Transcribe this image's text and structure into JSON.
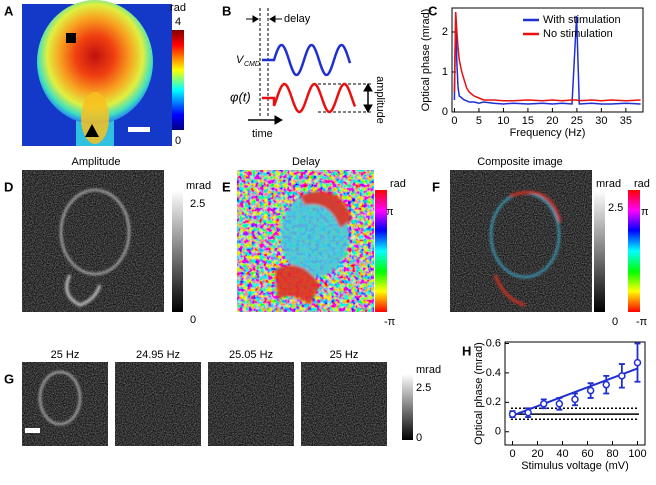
{
  "panels": {
    "A": {
      "letter": "A",
      "unit": "rad",
      "max": "4",
      "min": "0"
    },
    "B": {
      "letter": "B",
      "delay": "delay",
      "amplitude": "amplitude",
      "time": "time",
      "vcmd": "V",
      "vcmd_sub": "CMD",
      "phi": "φ(t)"
    },
    "C": {
      "letter": "C"
    },
    "D": {
      "letter": "D",
      "title": "Amplitude",
      "unit": "mrad",
      "max": "2.5",
      "min": "0"
    },
    "E": {
      "letter": "E",
      "title": "Delay",
      "unit": "rad",
      "max": "π",
      "min": "-π"
    },
    "F": {
      "letter": "F",
      "title": "Composite image",
      "unit_gray": "mrad",
      "unit_color": "rad",
      "gray_max": "2.5",
      "gray_min": "0",
      "color_max": "π",
      "color_min": "-π"
    },
    "G": {
      "letter": "G",
      "titles": [
        "25 Hz",
        "24.95 Hz",
        "25.05 Hz",
        "25 Hz"
      ],
      "unit": "mrad",
      "max": "2.5",
      "min": "0"
    },
    "H": {
      "letter": "H"
    }
  },
  "chart_data": [
    {
      "type": "line",
      "x_label": "Frequency (Hz)",
      "y_label": "Optical phase (mrad)",
      "x": [
        0,
        0.25,
        0.5,
        0.75,
        1,
        1.5,
        2,
        2.5,
        3,
        4,
        5,
        6,
        8,
        10,
        12,
        15,
        18,
        20,
        22,
        24,
        24.95,
        25.5,
        28,
        30,
        32,
        35,
        38
      ],
      "series": [
        {
          "name": "With stimulation",
          "color": "#1f2fd0",
          "values": [
            0.3,
            2.5,
            1.2,
            0.6,
            0.4,
            0.35,
            0.3,
            0.28,
            0.25,
            0.25,
            0.22,
            0.25,
            0.22,
            0.2,
            0.22,
            0.2,
            0.22,
            0.2,
            0.22,
            0.2,
            2.4,
            0.2,
            0.22,
            0.2,
            0.2,
            0.22,
            0.2
          ]
        },
        {
          "name": "No stimulation",
          "color": "#e81010",
          "values": [
            0.5,
            2.5,
            2.0,
            1.6,
            1.3,
            1.0,
            0.8,
            0.6,
            0.5,
            0.4,
            0.35,
            0.3,
            0.3,
            0.28,
            0.28,
            0.3,
            0.28,
            0.3,
            0.28,
            0.3,
            0.3,
            0.28,
            0.3,
            0.28,
            0.3,
            0.28,
            0.3
          ]
        }
      ],
      "xlim": [
        -0.5,
        38.5
      ],
      "ylim": [
        0,
        2.6
      ],
      "xticks": [
        0,
        5,
        10,
        15,
        20,
        25,
        30,
        35
      ],
      "yticks": [
        0,
        1,
        2
      ],
      "legend": "upper right"
    },
    {
      "type": "scatter",
      "x_label": "Stimulus voltage (mV)",
      "y_label": "Optical phase (mrad)",
      "color": "#1f2fd0",
      "x": [
        0,
        12.5,
        25,
        37.5,
        50,
        62.5,
        75,
        87.5,
        100
      ],
      "values": [
        0.12,
        0.13,
        0.19,
        0.19,
        0.22,
        0.28,
        0.32,
        0.38,
        0.47
      ],
      "errors": [
        0.02,
        0.03,
        0.03,
        0.04,
        0.04,
        0.05,
        0.06,
        0.08,
        0.13
      ],
      "fit": {
        "x": [
          0,
          100
        ],
        "values": [
          0.11,
          0.43
        ]
      },
      "hlines": [
        {
          "value": 0.12,
          "style": "solid"
        },
        {
          "value": 0.085,
          "style": "dotted"
        },
        {
          "value": 0.16,
          "style": "dotted"
        }
      ],
      "xlim": [
        -6,
        106
      ],
      "ylim": [
        -0.09,
        0.61
      ],
      "xticks": [
        0,
        20,
        40,
        60,
        80,
        100
      ],
      "yticks": [
        0,
        0.2,
        0.4,
        0.6
      ]
    }
  ]
}
